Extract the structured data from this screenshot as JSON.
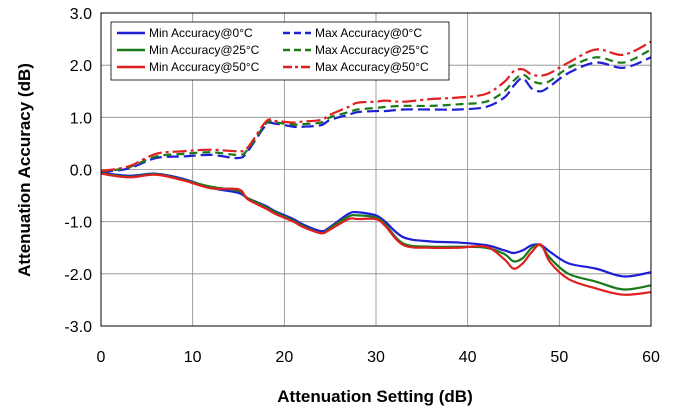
{
  "chart_data": {
    "type": "line",
    "title": "",
    "xlabel": "Attenuation Setting (dB)",
    "ylabel": "Attenuation Accuracy (dB)",
    "xlim": [
      0,
      60
    ],
    "ylim": [
      -3,
      3
    ],
    "x_ticks": [
      "0",
      "10",
      "20",
      "30",
      "40",
      "50",
      "60"
    ],
    "y_ticks": [
      "3.0",
      "2.0",
      "1.0",
      "0.0",
      "-1.0",
      "-2.0",
      "-3.0"
    ],
    "grid": true,
    "legend_position": "top-left inside plot, two columns",
    "x": [
      0,
      3,
      6,
      9,
      12,
      15,
      16,
      18,
      19,
      21,
      22,
      24,
      25,
      27,
      28,
      30,
      31,
      33,
      36,
      39,
      42,
      44,
      45,
      46,
      47,
      48,
      49,
      51,
      54,
      57,
      60
    ],
    "series": [
      {
        "name": "Min Accuracy@0°C",
        "color": "#1f1fd6",
        "dash": "solid",
        "values": [
          -0.06,
          -0.12,
          -0.08,
          -0.18,
          -0.35,
          -0.45,
          -0.55,
          -0.7,
          -0.8,
          -0.95,
          -1.05,
          -1.18,
          -1.1,
          -0.85,
          -0.82,
          -0.88,
          -1.0,
          -1.3,
          -1.38,
          -1.4,
          -1.45,
          -1.55,
          -1.6,
          -1.55,
          -1.45,
          -1.45,
          -1.58,
          -1.8,
          -1.9,
          -2.05,
          -1.97
        ]
      },
      {
        "name": "Min Accuracy@25°C",
        "color": "#1a7a1a",
        "dash": "solid",
        "values": [
          -0.07,
          -0.14,
          -0.09,
          -0.2,
          -0.33,
          -0.41,
          -0.55,
          -0.72,
          -0.82,
          -0.98,
          -1.08,
          -1.22,
          -1.12,
          -0.9,
          -0.88,
          -0.92,
          -1.05,
          -1.42,
          -1.48,
          -1.48,
          -1.5,
          -1.62,
          -1.76,
          -1.7,
          -1.5,
          -1.46,
          -1.7,
          -2.0,
          -2.15,
          -2.3,
          -2.22
        ]
      },
      {
        "name": "Min Accuracy@50°C",
        "color": "#e02020",
        "dash": "solid",
        "values": [
          -0.08,
          -0.15,
          -0.1,
          -0.21,
          -0.36,
          -0.38,
          -0.57,
          -0.75,
          -0.85,
          -1.0,
          -1.1,
          -1.22,
          -1.15,
          -0.95,
          -0.95,
          -0.95,
          -1.08,
          -1.45,
          -1.5,
          -1.5,
          -1.48,
          -1.72,
          -1.9,
          -1.8,
          -1.58,
          -1.44,
          -1.78,
          -2.1,
          -2.28,
          -2.4,
          -2.35
        ]
      },
      {
        "name": "Max Accuracy@0°C",
        "color": "#1f1fd6",
        "dash": "12,5",
        "values": [
          -0.05,
          0.02,
          0.22,
          0.25,
          0.28,
          0.22,
          0.35,
          0.85,
          0.88,
          0.82,
          0.82,
          0.85,
          0.95,
          1.05,
          1.1,
          1.12,
          1.12,
          1.15,
          1.15,
          1.15,
          1.2,
          1.38,
          1.6,
          1.75,
          1.55,
          1.5,
          1.6,
          1.85,
          2.05,
          1.95,
          2.15
        ]
      },
      {
        "name": "Max Accuracy@25°C",
        "color": "#1a7a1a",
        "dash": "8,5",
        "values": [
          -0.04,
          0.04,
          0.25,
          0.3,
          0.33,
          0.28,
          0.38,
          0.88,
          0.9,
          0.86,
          0.87,
          0.9,
          1.0,
          1.1,
          1.15,
          1.18,
          1.2,
          1.22,
          1.22,
          1.25,
          1.3,
          1.5,
          1.7,
          1.82,
          1.7,
          1.65,
          1.7,
          1.95,
          2.15,
          2.05,
          2.3
        ]
      },
      {
        "name": "Max Accuracy@50°C",
        "color": "#e02020",
        "dash": "14,4,3,4",
        "values": [
          -0.03,
          0.06,
          0.3,
          0.35,
          0.38,
          0.35,
          0.42,
          0.92,
          0.93,
          0.9,
          0.92,
          0.95,
          1.05,
          1.2,
          1.28,
          1.3,
          1.32,
          1.3,
          1.35,
          1.38,
          1.45,
          1.68,
          1.88,
          1.92,
          1.82,
          1.8,
          1.85,
          2.05,
          2.3,
          2.2,
          2.45
        ]
      }
    ]
  }
}
